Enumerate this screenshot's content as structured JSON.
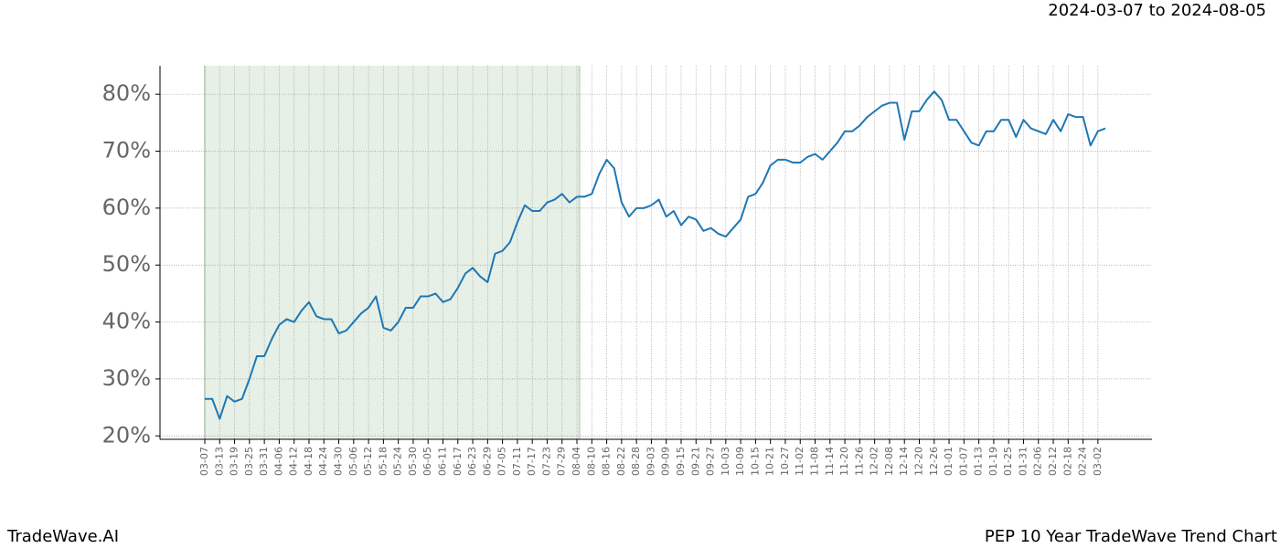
{
  "chart_data": {
    "type": "line",
    "title": "2024-03-07 to 2024-08-05",
    "footer_left": "TradeWave.AI",
    "footer_right": "PEP 10 Year TradeWave Trend Chart",
    "categories": [
      "03-07",
      null,
      "03-13",
      null,
      "03-19",
      null,
      "03-25",
      null,
      "03-31",
      null,
      "04-06",
      null,
      "04-12",
      null,
      "04-18",
      null,
      "04-24",
      null,
      "04-30",
      null,
      "05-06",
      null,
      "05-12",
      null,
      "05-18",
      null,
      "05-24",
      null,
      "05-30",
      null,
      "06-05",
      null,
      "06-11",
      null,
      "06-17",
      null,
      "06-23",
      null,
      "06-29",
      null,
      "07-05",
      null,
      "07-11",
      null,
      "07-17",
      null,
      "07-23",
      null,
      "07-29",
      null,
      "08-04",
      null,
      "08-10",
      null,
      "08-16",
      null,
      "08-22",
      null,
      "08-28",
      null,
      "09-03",
      null,
      "09-09",
      null,
      "09-15",
      null,
      "09-21",
      null,
      "09-27",
      null,
      "10-03",
      null,
      "10-09",
      null,
      "10-15",
      null,
      "10-21",
      null,
      "10-27",
      null,
      "11-02",
      null,
      "11-08",
      null,
      "11-14",
      null,
      "11-20",
      null,
      "11-26",
      null,
      "12-02",
      null,
      "12-08",
      null,
      "12-14",
      null,
      "12-20",
      null,
      "12-26",
      null,
      "01-01",
      null,
      "01-07",
      null,
      "01-13",
      null,
      "01-19",
      null,
      "01-25",
      null,
      "01-31",
      null,
      "02-06",
      null,
      "02-12",
      null,
      "02-18",
      null,
      "02-24",
      null,
      "03-02",
      null
    ],
    "series": [
      {
        "name": "PEP",
        "color": "#1f77b4",
        "values": [
          26.5,
          26.5,
          23,
          27,
          26,
          26.5,
          30,
          34,
          34,
          37,
          39.5,
          40.5,
          40,
          42,
          43.5,
          41,
          40.5,
          40.5,
          38,
          38.5,
          40,
          41.5,
          42.5,
          44.5,
          39,
          38.5,
          40,
          42.5,
          42.5,
          44.5,
          44.5,
          45,
          43.5,
          44,
          46,
          48.5,
          49.5,
          48,
          47,
          52,
          52.5,
          54,
          57.5,
          60.5,
          59.5,
          59.5,
          61,
          61.5,
          62.5,
          61,
          62,
          62,
          62.5,
          66,
          68.5,
          67,
          61,
          58.5,
          60,
          60,
          60.5,
          61.5,
          58.5,
          59.5,
          57,
          58.5,
          58,
          56,
          56.5,
          55.5,
          55,
          56.5,
          58,
          62,
          62.5,
          64.5,
          67.5,
          68.5,
          68.5,
          68,
          68,
          69,
          69.5,
          68.5,
          70,
          71.5,
          73.5,
          73.5,
          74.5,
          76,
          77,
          78,
          78.5,
          78.5,
          72,
          77,
          77,
          79,
          80.5,
          79,
          75.5,
          75.5,
          73.5,
          71.5,
          71,
          73.5,
          73.5,
          75.5,
          75.5,
          72.5,
          75.5,
          74,
          73.5,
          73,
          75.5,
          73.5,
          76.5,
          76,
          76,
          71,
          73.5,
          74
        ]
      }
    ],
    "ylim": [
      19.4,
      85
    ],
    "yticks": [
      {
        "value": 20,
        "label": "20%"
      },
      {
        "value": 30,
        "label": "30%"
      },
      {
        "value": 40,
        "label": "40%"
      },
      {
        "value": 50,
        "label": "50%"
      },
      {
        "value": 60,
        "label": "60%"
      },
      {
        "value": 70,
        "label": "70%"
      },
      {
        "value": 80,
        "label": "80%"
      }
    ],
    "grid": true,
    "highlight_color": "#e6f0e6"
  }
}
